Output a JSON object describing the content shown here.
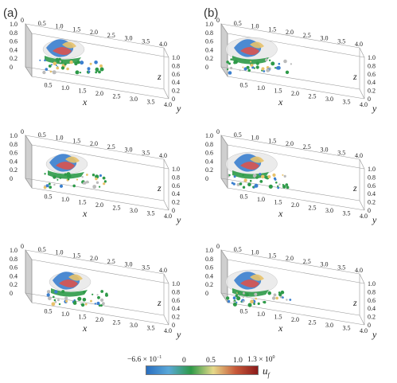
{
  "panel_labels": {
    "a": "(a)",
    "b": "(b)"
  },
  "axis": {
    "x_ticks": [
      "0.5",
      "1.0",
      "1.5",
      "2.0",
      "2.5",
      "3.0",
      "3.5",
      "4.0"
    ],
    "x_ticks_top": [
      "0",
      "0.5",
      "1.0",
      "1.5",
      "2.0",
      "2.5",
      "3.0",
      "3.5",
      "4.0"
    ],
    "z_ticks_left": [
      "1.0",
      "0.8",
      "0.6",
      "0.4",
      "0.2",
      "0"
    ],
    "y_ticks": [
      "1.0",
      "0.8",
      "0.6",
      "0.4",
      "0.2",
      "0"
    ],
    "x_label": "x",
    "y_label": "y",
    "z_label": "z"
  },
  "colorbar": {
    "variable": "u",
    "variable_sub": "f",
    "tick_labels": [
      "−6.6 × 10",
      "0",
      "0.5",
      "1.0",
      "1.3 × 10"
    ],
    "exp_min": "−1",
    "exp_max": "0",
    "colors": [
      "#2a6fc0",
      "#5aa8d8",
      "#2e9a48",
      "#e6d98a",
      "#c85a3a",
      "#8b1a1a"
    ]
  }
}
